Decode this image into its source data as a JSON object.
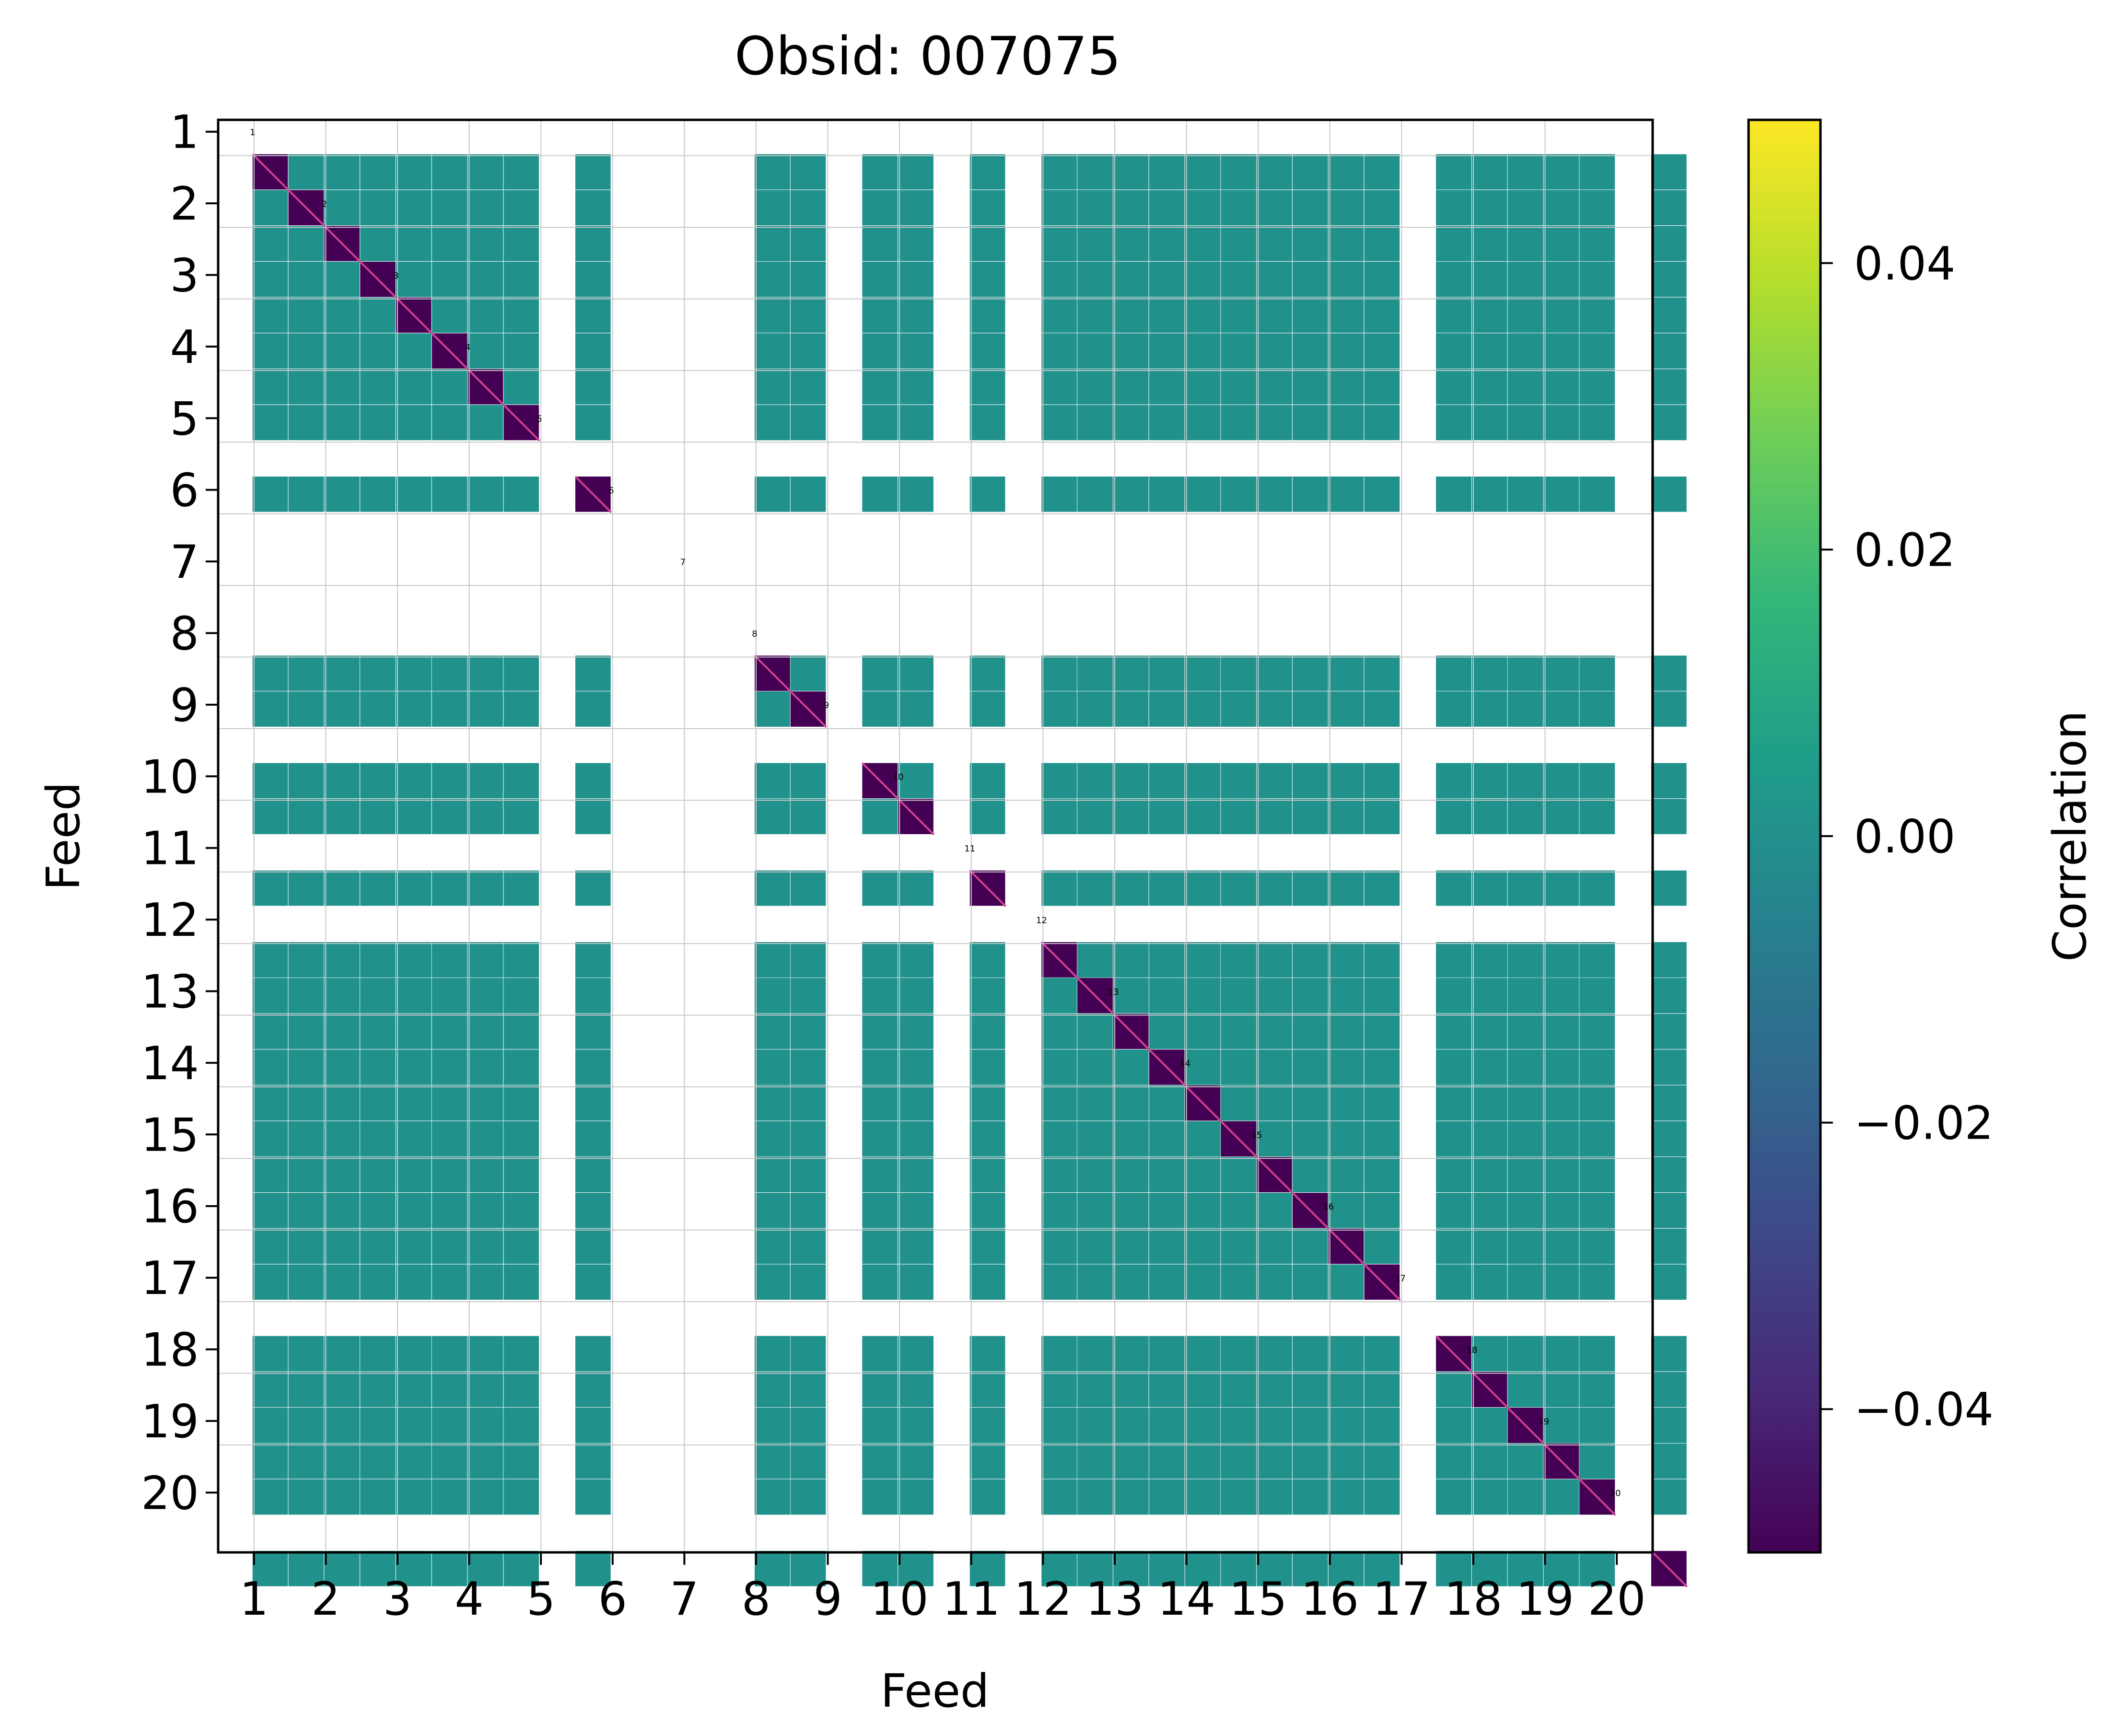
{
  "chart_data": {
    "type": "heatmap",
    "title": "Obsid: 007075",
    "xlabel": "Feed",
    "ylabel": "Feed",
    "x_ticks": [
      "1",
      "2",
      "3",
      "4",
      "5",
      "6",
      "7",
      "8",
      "9",
      "10",
      "11",
      "12",
      "13",
      "14",
      "15",
      "16",
      "17",
      "18",
      "19",
      "20"
    ],
    "y_ticks": [
      "1",
      "2",
      "3",
      "4",
      "5",
      "6",
      "7",
      "8",
      "9",
      "10",
      "11",
      "12",
      "13",
      "14",
      "15",
      "16",
      "17",
      "18",
      "19",
      "20"
    ],
    "n_feeds": 20,
    "sidebands_per_feed": 4,
    "diagonal_labels": [
      "1",
      "2",
      "3",
      "4",
      "5",
      "6",
      "7",
      "8",
      "9",
      "10",
      "11",
      "12",
      "13",
      "14",
      "15",
      "16",
      "17",
      "18",
      "19",
      "20"
    ],
    "masked_sidebands": {
      "1": [
        2
      ],
      "2": [
        1
      ],
      "3": [
        0,
        1,
        2,
        3
      ],
      "4": [
        2
      ],
      "5": [
        0,
        1,
        2,
        3
      ],
      "6": [
        0,
        1,
        2,
        3
      ],
      "7": [
        0,
        1,
        3
      ],
      "8": [
        2
      ],
      "9": [
        0,
        1,
        3
      ],
      "10": [
        0,
        1,
        2,
        3
      ],
      "11": [
        1
      ],
      "12": [
        2,
        3
      ],
      "13": [],
      "14": [],
      "15": [
        0,
        1,
        2,
        3
      ],
      "16": [
        2
      ],
      "17": [
        0
      ],
      "18": [
        0
      ],
      "19": [
        2
      ],
      "20": [
        0,
        1,
        2,
        3
      ]
    },
    "cross_value": 0.0,
    "diagonal_value": -0.05,
    "colorbar": {
      "label": "Correlation",
      "colormap": "viridis",
      "vmin": -0.05,
      "vmax": 0.05,
      "ticks": [
        -0.04,
        -0.02,
        0.0,
        0.02,
        0.04
      ],
      "tick_labels": [
        "−0.04",
        "−0.02",
        "0.00",
        "0.02",
        "0.04"
      ]
    },
    "grid": true
  },
  "colors": {
    "cross": "#21918c",
    "diagonal": "#440154",
    "diagonal_line": "#d2428f",
    "grid": "#c8c8c8",
    "stops": [
      "#440154",
      "#482878",
      "#3e4989",
      "#31688e",
      "#26828e",
      "#1f9e89",
      "#35b779",
      "#6ece58",
      "#b5de2b",
      "#fde725"
    ]
  }
}
